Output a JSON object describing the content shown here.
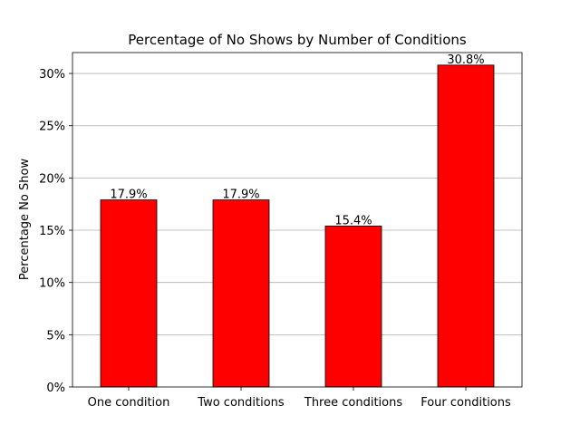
{
  "chart_data": {
    "type": "bar",
    "title": "Percentage of No Shows by Number of Conditions",
    "xlabel": "",
    "ylabel": "Percentage No Show",
    "categories": [
      "One condition",
      "Two conditions",
      "Three conditions",
      "Four conditions"
    ],
    "values": [
      17.9,
      17.9,
      15.4,
      30.8
    ],
    "data_labels": [
      "17.9%",
      "17.9%",
      "15.4%",
      "30.8%"
    ],
    "ylim": [
      0,
      32
    ],
    "yticks": [
      0,
      5,
      10,
      15,
      20,
      25,
      30
    ],
    "ytick_labels": [
      "0%",
      "5%",
      "10%",
      "15%",
      "20%",
      "25%",
      "30%"
    ],
    "bar_color": "#ff0000",
    "bar_edge_color": "#000000",
    "grid": "y-axis only",
    "legend": "none"
  }
}
